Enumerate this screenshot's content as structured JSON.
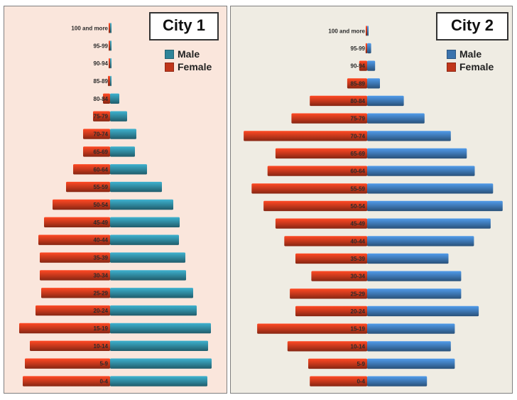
{
  "chart_data": [
    {
      "type": "bar",
      "orientation": "horizontal-population-pyramid",
      "title": "City 1",
      "legend": [
        {
          "label": "Male",
          "color": "#2e8499"
        },
        {
          "label": "Female",
          "color": "#c0361b"
        }
      ],
      "legend_position": "top-right",
      "categories": [
        "0-4",
        "5-9",
        "10-14",
        "15-19",
        "20-24",
        "25-29",
        "30-34",
        "35-39",
        "40-44",
        "45-49",
        "50-54",
        "55-59",
        "60-64",
        "65-69",
        "70-74",
        "75-79",
        "80-84",
        "85-89",
        "90-94",
        "95-99",
        "100 and more"
      ],
      "series": [
        {
          "name": "Male",
          "values": [
            137,
            143,
            138,
            142,
            122,
            117,
            107,
            106,
            97,
            98,
            89,
            73,
            52,
            35,
            37,
            24,
            13,
            2,
            1,
            0.5,
            0.3
          ]
        },
        {
          "name": "Female",
          "values": [
            123,
            120,
            113,
            128,
            105,
            97,
            99,
            99,
            101,
            93,
            81,
            62,
            52,
            38,
            38,
            24,
            10,
            3,
            1,
            0.5,
            0.3
          ]
        }
      ],
      "xlim": [
        -145,
        145
      ]
    },
    {
      "type": "bar",
      "orientation": "horizontal-population-pyramid",
      "title": "City 2",
      "legend": [
        {
          "label": "Male",
          "color": "#3b73ad"
        },
        {
          "label": "Female",
          "color": "#c0361b"
        }
      ],
      "legend_position": "top-right",
      "categories": [
        "0-4",
        "5-9",
        "10-14",
        "15-19",
        "20-24",
        "25-29",
        "30-34",
        "35-39",
        "40-44",
        "45-49",
        "50-54",
        "55-59",
        "60-64",
        "65-69",
        "70-74",
        "75-79",
        "80-84",
        "85-89",
        "90-94",
        "95-99",
        "100 and more"
      ],
      "series": [
        {
          "name": "Male",
          "values": [
            75,
            110,
            105,
            110,
            140,
            118,
            118,
            102,
            134,
            155,
            170,
            158,
            135,
            125,
            105,
            72,
            46,
            16,
            10,
            5,
            1
          ]
        },
        {
          "name": "Female",
          "values": [
            72,
            74,
            100,
            138,
            90,
            97,
            70,
            90,
            104,
            115,
            130,
            145,
            125,
            115,
            155,
            95,
            72,
            25,
            10,
            2,
            1
          ]
        }
      ],
      "xlim": [
        -180,
        180
      ]
    }
  ]
}
